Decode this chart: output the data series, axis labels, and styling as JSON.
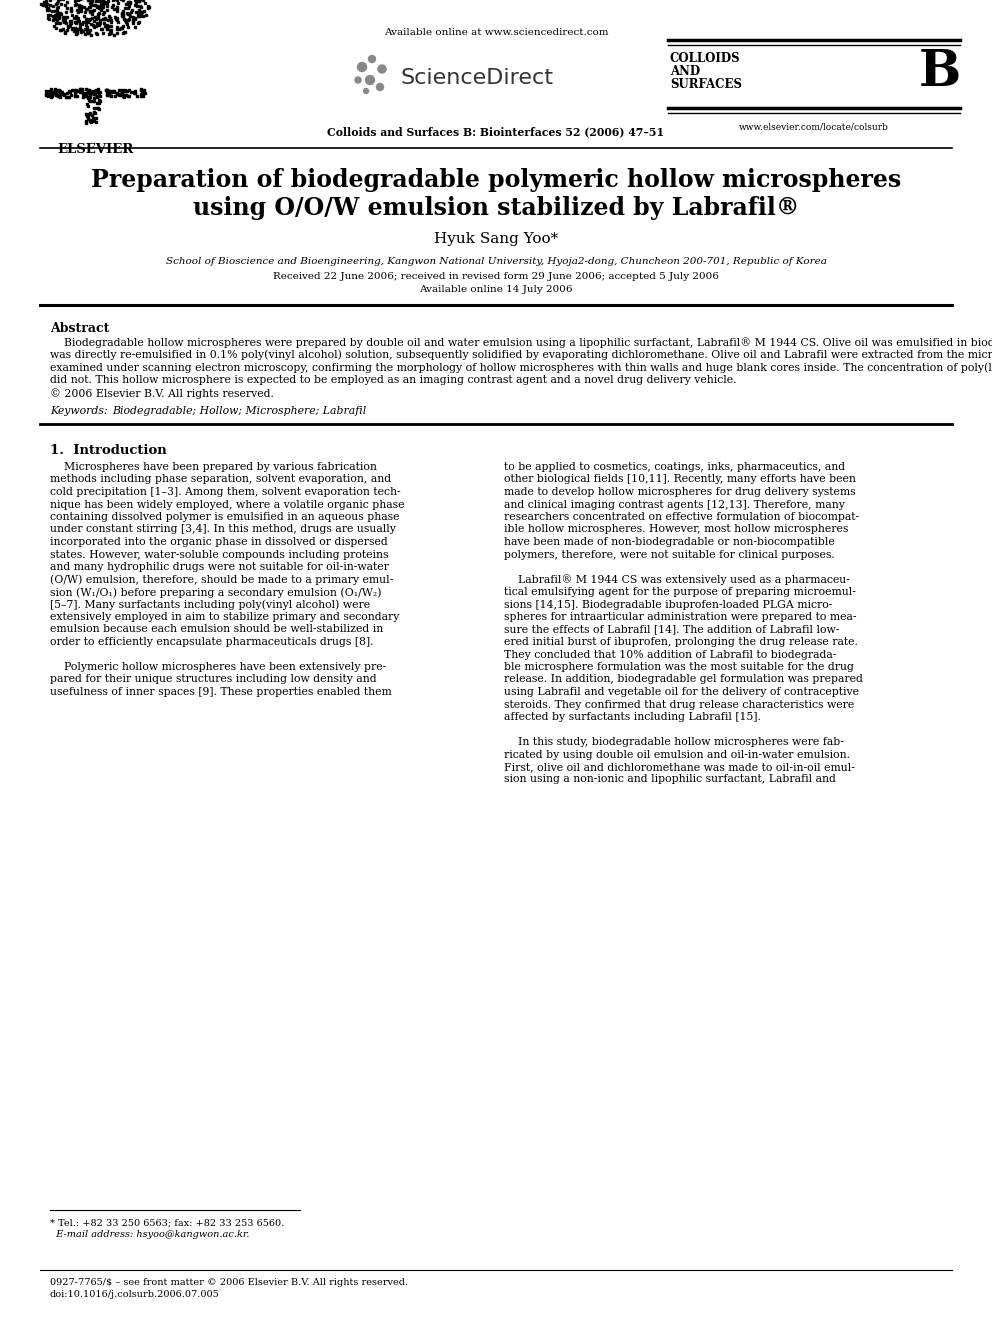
{
  "bg_color": "#ffffff",
  "header_available": "Available online at www.sciencedirect.com",
  "header_sciencedirect": "ScienceDirect",
  "header_journal": "Colloids and Surfaces B: Biointerfaces 52 (2006) 47–51",
  "header_elsevier": "ELSEVIER",
  "header_colloids1": "COLLOIDS",
  "header_colloids2": "AND",
  "header_colloids3": "SURFACES",
  "header_b": "B",
  "header_url": "www.elsevier.com/locate/colsurb",
  "title_line1": "Preparation of biodegradable polymeric hollow microspheres",
  "title_line2": "using O/O/W emulsion stabilized by Labrafil®",
  "author": "Hyuk Sang Yoo*",
  "affiliation": "School of Bioscience and Bioengineering, Kangwon National University, Hyoja2-dong, Chuncheon 200-701, Republic of Korea",
  "dates1": "Received 22 June 2006; received in revised form 29 June 2006; accepted 5 July 2006",
  "dates2": "Available online 14 July 2006",
  "abstract_title": "Abstract",
  "keywords_label": "Keywords:",
  "keywords_text": "  Biodegradable; Hollow; Microsphere; Labrafil",
  "section1_title": "1.  Introduction",
  "footer1": "* Tel.: +82 33 250 6563; fax: +82 33 253 6560.",
  "footer2": "  E-mail address: hsyoo@kangwon.ac.kr.",
  "footer3": "0927-7765/$ – see front matter © 2006 Elsevier B.V. All rights reserved.",
  "footer4": "doi:10.1016/j.colsurb.2006.07.005",
  "abstract_lines": [
    "    Biodegradable hollow microspheres were prepared by double oil and water emulsion using a lipophilic surfactant, Labrafil® M 1944 CS. Olive oil was emulsified in biodegradable polymer-dissolved",
    "dichloromethane mixed with Labrafil by vigorous sonication. This oil-in-oil emulsion was directly re-emulsified in 0.1% poly(vinyl alcohol) solution, subsequently solidified by evaporating",
    "dichloromethane. Olive oil and Labrafil were extracted from the microspheres by using hexane. After vigorous washing with n-hexane, the hollow microsphere was freeze-dried and examined under",
    "scanning electron microscopy, confirming the morphology of hollow microspheres with thin walls and huge blank cores inside. The concentration of poly(l-lactide) in dichloromethane affected the size",
    "of hollow microspheres while the volume of olive oil or dichloromethane did not. This hollow microsphere is expected to be employed as an imaging contrast agent and a novel drug delivery vehicle.",
    "© 2006 Elsevier B.V. All rights reserved."
  ],
  "col1_lines": [
    "    Microspheres have been prepared by various fabrication",
    "methods including phase separation, solvent evaporation, and",
    "cold precipitation [1–3]. Among them, solvent evaporation tech-",
    "nique has been widely employed, where a volatile organic phase",
    "containing dissolved polymer is emulsified in an aqueous phase",
    "under constant stirring [3,4]. In this method, drugs are usually",
    "incorporated into the organic phase in dissolved or dispersed",
    "states. However, water-soluble compounds including proteins",
    "and many hydrophilic drugs were not suitable for oil-in-water",
    "(O/W) emulsion, therefore, should be made to a primary emul-",
    "sion (W₁/O₁) before preparing a secondary emulsion (O₁/W₂)",
    "[5–7]. Many surfactants including poly(vinyl alcohol) were",
    "extensively employed in aim to stabilize primary and secondary",
    "emulsion because each emulsion should be well-stabilized in",
    "order to efficiently encapsulate pharmaceuticals drugs [8].",
    "",
    "    Polymeric hollow microspheres have been extensively pre-",
    "pared for their unique structures including low density and",
    "usefulness of inner spaces [9]. These properties enabled them"
  ],
  "col2_lines": [
    "to be applied to cosmetics, coatings, inks, pharmaceutics, and",
    "other biological fields [10,11]. Recently, many efforts have been",
    "made to develop hollow microspheres for drug delivery systems",
    "and clinical imaging contrast agents [12,13]. Therefore, many",
    "researchers concentrated on effective formulation of biocompat-",
    "ible hollow microspheres. However, most hollow microspheres",
    "have been made of non-biodegradable or non-biocompatible",
    "polymers, therefore, were not suitable for clinical purposes.",
    "",
    "    Labrafil® M 1944 CS was extensively used as a pharmaceu-",
    "tical emulsifying agent for the purpose of preparing microemul-",
    "sions [14,15]. Biodegradable ibuprofen-loaded PLGA micro-",
    "spheres for intraarticular administration were prepared to mea-",
    "sure the effects of Labrafil [14]. The addition of Labrafil low-",
    "ered initial burst of ibuprofen, prolonging the drug release rate.",
    "They concluded that 10% addition of Labrafil to biodegrada-",
    "ble microsphere formulation was the most suitable for the drug",
    "release. In addition, biodegradable gel formulation was prepared",
    "using Labrafil and vegetable oil for the delivery of contraceptive",
    "steroids. They confirmed that drug release characteristics were",
    "affected by surfactants including Labrafil [15].",
    "",
    "    In this study, biodegradable hollow microspheres were fab-",
    "ricated by using double oil emulsion and oil-in-water emulsion.",
    "First, olive oil and dichloromethane was made to oil-in-oil emul-",
    "sion using a non-ionic and lipophilic surfactant, Labrafil and"
  ]
}
